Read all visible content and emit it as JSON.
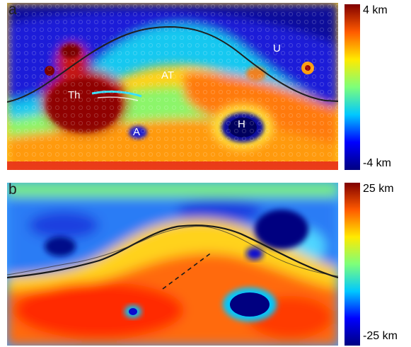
{
  "panel_a": {
    "label": "a",
    "region_labels": {
      "tharsis": "Th",
      "alba": "A",
      "arabia_terra": "AT",
      "utopia": "U",
      "hellas": "H"
    },
    "colorbar": {
      "max_label": "4 km",
      "min_label": "-4 km"
    }
  },
  "panel_b": {
    "label": "b",
    "colorbar": {
      "max_label": "25 km",
      "min_label": "-25 km"
    }
  },
  "colormap": [
    "#000080",
    "#0000ff",
    "#00c8ff",
    "#7dff7a",
    "#ffea00",
    "#ff5a00",
    "#800000"
  ]
}
